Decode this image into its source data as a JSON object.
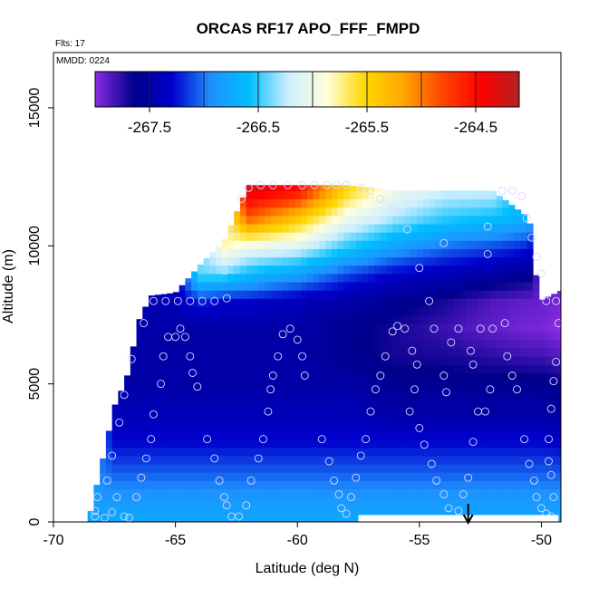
{
  "chart_data": {
    "type": "heatmap",
    "title": "ORCAS RF17 APO_FFF_FMPD",
    "corner_labels": [
      "Flts: 17",
      "MMDD: 0224"
    ],
    "xlabel": "Latitude (deg N)",
    "ylabel": "Altitude (m)",
    "xlim": [
      -70,
      -49.2
    ],
    "ylim": [
      0,
      17000
    ],
    "x_ticks": [
      -70,
      -65,
      -60,
      -55,
      -50
    ],
    "x_tick_labels": [
      "-70",
      "-65",
      "-60",
      "-55",
      "-50"
    ],
    "y_ticks": [
      0,
      5000,
      10000,
      15000
    ],
    "y_tick_labels": [
      "0",
      "5000",
      "10000",
      "15000"
    ],
    "colorbar": {
      "range": [
        -268.0,
        -264.1
      ],
      "ticks": [
        -267.5,
        -266.5,
        -265.5,
        -264.5
      ],
      "tick_labels": [
        "-267.5",
        "-266.5",
        "-265.5",
        "-264.5"
      ],
      "colors": [
        "#8A2BE2",
        "#00008B",
        "#0000CD",
        "#1E90FF",
        "#00BFFF",
        "#CCEEFF",
        "#FFFFDD",
        "#FFD700",
        "#FFA500",
        "#FF4500",
        "#FF0000",
        "#B22222"
      ]
    },
    "field_surface_value": -266.75,
    "field_columns": [
      {
        "lat": -68.5,
        "top": 300,
        "v": [
          -266.75,
          -266.75
        ]
      },
      {
        "lat": -68.0,
        "top": 2200,
        "v": [
          -266.75,
          -266.9,
          -267.0
        ]
      },
      {
        "lat": -67.5,
        "top": 4200,
        "v": [
          -266.75,
          -266.9,
          -267.1,
          -267.3,
          -267.4
        ]
      },
      {
        "lat": -67.0,
        "top": 5200,
        "v": [
          -266.75,
          -266.9,
          -267.1,
          -267.3,
          -267.4,
          -267.5
        ]
      },
      {
        "lat": -66.5,
        "top": 7300,
        "v": [
          -266.75,
          -266.9,
          -267.1,
          -267.3,
          -267.4,
          -267.5,
          -267.5,
          -267.45
        ]
      },
      {
        "lat": -66.0,
        "top": 8200,
        "v": [
          -266.75,
          -266.9,
          -267.1,
          -267.3,
          -267.4,
          -267.5,
          -267.5,
          -267.5,
          -267.45
        ]
      },
      {
        "lat": -65.0,
        "top": 8300,
        "v": [
          -266.75,
          -266.9,
          -267.1,
          -267.3,
          -267.4,
          -267.5,
          -267.5,
          -267.5,
          -267.4
        ]
      },
      {
        "lat": -64.0,
        "top": 9300,
        "v": [
          -266.75,
          -266.9,
          -267.1,
          -267.3,
          -267.4,
          -267.5,
          -267.5,
          -267.5,
          -267.2,
          -266.4
        ]
      },
      {
        "lat": -63.0,
        "top": 10200,
        "v": [
          -266.75,
          -266.9,
          -267.1,
          -267.3,
          -267.4,
          -267.5,
          -267.5,
          -267.5,
          -267.3,
          -266.4,
          -265.8
        ]
      },
      {
        "lat": -62.0,
        "top": 12200,
        "v": [
          -266.75,
          -266.9,
          -267.1,
          -267.3,
          -267.4,
          -267.5,
          -267.5,
          -267.5,
          -267.3,
          -266.6,
          -266.0,
          -264.9,
          -264.3
        ]
      },
      {
        "lat": -60.0,
        "top": 12200,
        "v": [
          -266.75,
          -266.9,
          -267.1,
          -267.3,
          -267.4,
          -267.5,
          -267.5,
          -267.5,
          -267.4,
          -266.8,
          -266.1,
          -265.4,
          -264.5
        ]
      },
      {
        "lat": -58.0,
        "top": 12200,
        "v": [
          -266.75,
          -266.9,
          -267.1,
          -267.3,
          -267.4,
          -267.5,
          -267.6,
          -267.6,
          -267.5,
          -267.1,
          -266.5,
          -266.0,
          -265.5
        ]
      },
      {
        "lat": -56.0,
        "top": 12000,
        "v": [
          -266.75,
          -266.9,
          -267.1,
          -267.3,
          -267.5,
          -267.6,
          -267.7,
          -267.7,
          -267.6,
          -267.3,
          -266.8,
          -266.3,
          -266.0
        ]
      },
      {
        "lat": -54.0,
        "top": 12000,
        "v": [
          -266.75,
          -266.9,
          -267.1,
          -267.3,
          -267.5,
          -267.6,
          -267.7,
          -267.8,
          -267.7,
          -267.4,
          -267.0,
          -266.5,
          -266.2
        ]
      },
      {
        "lat": -52.0,
        "top": 12000,
        "v": [
          -266.75,
          -266.9,
          -267.1,
          -267.3,
          -267.5,
          -267.6,
          -267.75,
          -267.9,
          -267.85,
          -267.5,
          -267.1,
          -266.6,
          -266.2
        ]
      },
      {
        "lat": -50.5,
        "top": 11000,
        "v": [
          -266.75,
          -266.9,
          -267.1,
          -267.3,
          -267.5,
          -267.6,
          -267.8,
          -267.95,
          -267.9,
          -267.6,
          -267.2,
          -266.7
        ]
      },
      {
        "lat": -50.1,
        "top": 8000,
        "v": [
          -266.75,
          -266.9,
          -267.1,
          -267.3,
          -267.5,
          -267.6,
          -267.8,
          -267.95,
          -267.9
        ]
      }
    ],
    "field_columns_note": "v = value at altitude levels 0,1000,2000,... m up to top",
    "gap": {
      "lat_start": -57.5,
      "lat_end": -49.3,
      "alt_max": 250
    },
    "arrow_lat": -53.0,
    "samples": [
      [
        -68.3,
        200
      ],
      [
        -68.3,
        400
      ],
      [
        -68.2,
        900
      ],
      [
        -67.8,
        1500
      ],
      [
        -67.6,
        2400
      ],
      [
        -67.3,
        3600
      ],
      [
        -67.1,
        4600
      ],
      [
        -66.8,
        5900
      ],
      [
        -66.3,
        7200
      ],
      [
        -65.9,
        8000
      ],
      [
        -65.4,
        8000
      ],
      [
        -67.9,
        150
      ],
      [
        -67.6,
        350
      ],
      [
        -67.4,
        900
      ],
      [
        -67.1,
        200
      ],
      [
        -66.9,
        150
      ],
      [
        -66.6,
        900
      ],
      [
        -66.4,
        1600
      ],
      [
        -66.2,
        2300
      ],
      [
        -66.0,
        3000
      ],
      [
        -65.9,
        3900
      ],
      [
        -65.6,
        5000
      ],
      [
        -65.5,
        6000
      ],
      [
        -65.3,
        6700
      ],
      [
        -65.0,
        6700
      ],
      [
        -64.8,
        7000
      ],
      [
        -64.6,
        6700
      ],
      [
        -64.4,
        6000
      ],
      [
        -64.3,
        5400
      ],
      [
        -64.1,
        4900
      ],
      [
        -64.9,
        8000
      ],
      [
        -64.4,
        8000
      ],
      [
        -63.9,
        8000
      ],
      [
        -63.4,
        8000
      ],
      [
        -62.9,
        8100
      ],
      [
        -63.7,
        3000
      ],
      [
        -63.4,
        2300
      ],
      [
        -63.2,
        1500
      ],
      [
        -63.0,
        900
      ],
      [
        -62.9,
        600
      ],
      [
        -62.7,
        200
      ],
      [
        -62.4,
        200
      ],
      [
        -62.1,
        600
      ],
      [
        -61.9,
        1500
      ],
      [
        -61.6,
        2300
      ],
      [
        -61.4,
        3000
      ],
      [
        -61.2,
        4000
      ],
      [
        -61.1,
        4800
      ],
      [
        -61.0,
        5300
      ],
      [
        -60.8,
        6000
      ],
      [
        -60.6,
        6800
      ],
      [
        -60.3,
        7000
      ],
      [
        -60.0,
        6600
      ],
      [
        -59.8,
        6000
      ],
      [
        -59.7,
        5300
      ],
      [
        -59.0,
        3000
      ],
      [
        -58.7,
        2200
      ],
      [
        -58.5,
        1500
      ],
      [
        -58.3,
        1000
      ],
      [
        -58.2,
        500
      ],
      [
        -58.0,
        300
      ],
      [
        -57.8,
        900
      ],
      [
        -57.6,
        1600
      ],
      [
        -57.4,
        2400
      ],
      [
        -57.2,
        3000
      ],
      [
        -57.0,
        4000
      ],
      [
        -56.8,
        4800
      ],
      [
        -56.6,
        5300
      ],
      [
        -56.4,
        6000
      ],
      [
        -56.1,
        6900
      ],
      [
        -55.9,
        7100
      ],
      [
        -55.6,
        7000
      ],
      [
        -55.3,
        6200
      ],
      [
        -55.1,
        5700
      ],
      [
        -55.2,
        4800
      ],
      [
        -55.4,
        4000
      ],
      [
        -55.0,
        3400
      ],
      [
        -54.8,
        2800
      ],
      [
        -54.5,
        2100
      ],
      [
        -54.3,
        1500
      ],
      [
        -54.0,
        1000
      ],
      [
        -53.8,
        500
      ],
      [
        -53.4,
        400
      ],
      [
        -53.2,
        1000
      ],
      [
        -53.0,
        1600
      ],
      [
        -52.8,
        2900
      ],
      [
        -52.6,
        4000
      ],
      [
        -52.3,
        4000
      ],
      [
        -52.1,
        4800
      ],
      [
        -54.6,
        8000
      ],
      [
        -54.4,
        7000
      ],
      [
        -54.0,
        5300
      ],
      [
        -53.9,
        4700
      ],
      [
        -53.7,
        6500
      ],
      [
        -53.4,
        7000
      ],
      [
        -52.9,
        6200
      ],
      [
        -52.8,
        5700
      ],
      [
        -52.5,
        7000
      ],
      [
        -52.0,
        7000
      ],
      [
        -51.5,
        7200
      ],
      [
        -51.4,
        6000
      ],
      [
        -51.2,
        5300
      ],
      [
        -51.0,
        4800
      ],
      [
        -50.7,
        3000
      ],
      [
        -50.5,
        2100
      ],
      [
        -50.3,
        1500
      ],
      [
        -50.2,
        900
      ],
      [
        -50.0,
        500
      ],
      [
        -49.8,
        300
      ],
      [
        -49.6,
        200
      ],
      [
        -49.5,
        900
      ],
      [
        -49.6,
        1700
      ],
      [
        -49.7,
        2200
      ],
      [
        -49.7,
        3000
      ],
      [
        -49.6,
        4100
      ],
      [
        -49.5,
        5100
      ],
      [
        -49.4,
        5800
      ],
      [
        -49.3,
        7200
      ],
      [
        -49.4,
        8000
      ],
      [
        -49.8,
        8000
      ],
      [
        -50.0,
        9000
      ],
      [
        -50.2,
        9600
      ],
      [
        -50.4,
        10300
      ],
      [
        -50.6,
        11000
      ],
      [
        -50.8,
        11800
      ],
      [
        -51.2,
        12000
      ],
      [
        -51.6,
        12000
      ],
      [
        -52.2,
        10700
      ],
      [
        -52.2,
        9700
      ],
      [
        -54.0,
        10100
      ],
      [
        -55.0,
        9200
      ],
      [
        -55.5,
        10600
      ],
      [
        -56.1,
        11300
      ],
      [
        -56.6,
        11700
      ],
      [
        -57.0,
        12000
      ],
      [
        -57.4,
        12100
      ],
      [
        -58.0,
        12200
      ],
      [
        -58.4,
        12200
      ],
      [
        -58.8,
        12200
      ],
      [
        -59.3,
        12200
      ],
      [
        -59.8,
        12200
      ],
      [
        -60.4,
        12200
      ],
      [
        -61.0,
        12200
      ],
      [
        -61.5,
        12200
      ],
      [
        -62.0,
        12100
      ],
      [
        -62.3,
        11700
      ],
      [
        -62.6,
        10600
      ],
      [
        -63.0,
        9100
      ]
    ]
  }
}
